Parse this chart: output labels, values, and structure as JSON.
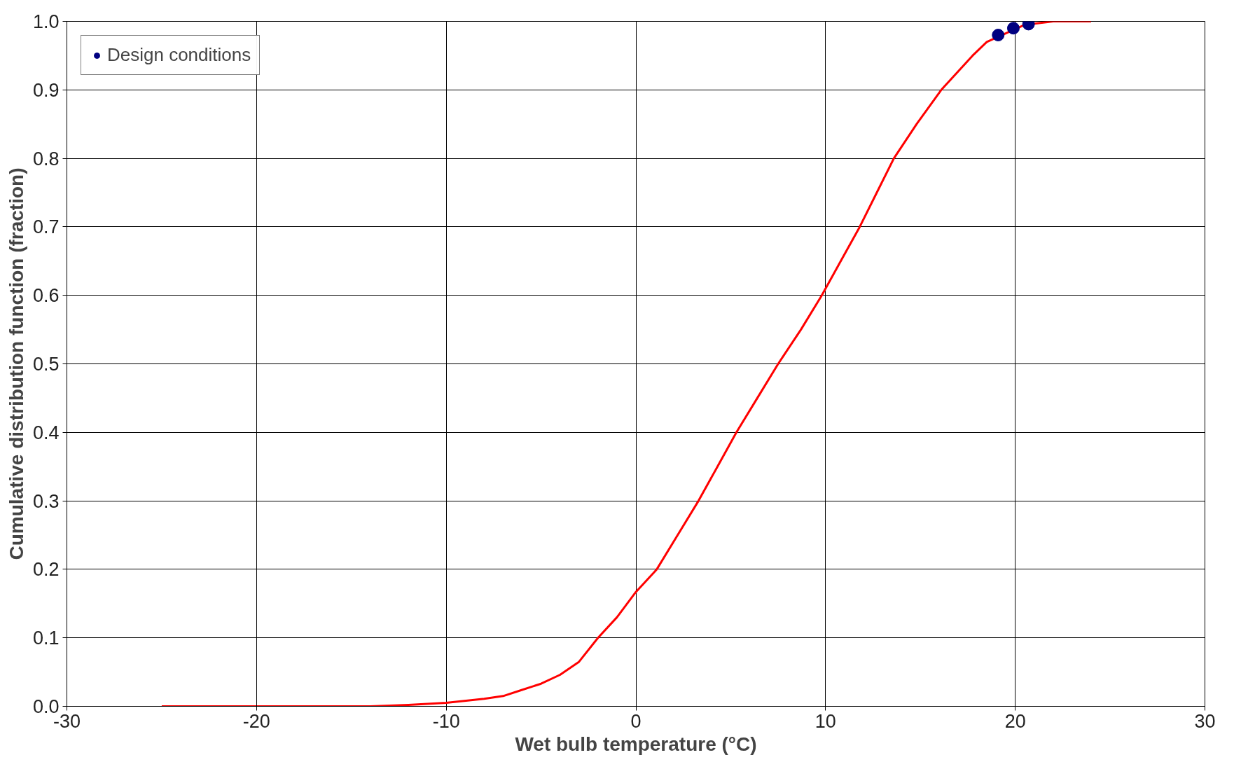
{
  "chart_data": {
    "type": "line",
    "xlabel": "Wet bulb temperature (°C)",
    "ylabel": "Cumulative distribution function (fraction)",
    "xlim": [
      -30,
      30
    ],
    "xticks": [
      -30,
      -20,
      -10,
      0,
      10,
      20,
      30
    ],
    "ylim": [
      0,
      1
    ],
    "yticks": [
      {
        "value": 0,
        "label": "0.0"
      },
      0.1,
      0.2,
      0.3,
      0.4,
      0.5,
      0.6,
      0.7,
      0.8,
      0.9,
      {
        "value": 1,
        "label": "1.0"
      }
    ],
    "grid": true,
    "legend": "top left",
    "series": [
      {
        "type": "line",
        "color": "#ff0000",
        "marker": "none",
        "line_style": "solid",
        "x": [
          -25,
          -14,
          -12,
          -10,
          -8,
          -7,
          -6,
          -5,
          -4,
          -3,
          -2,
          -1,
          0,
          1.1,
          2.2,
          3.3,
          4.3,
          5.3,
          6.4,
          7.5,
          8.7,
          9.8,
          10.8,
          11.8,
          12.7,
          13.6,
          14.8,
          16.1,
          17.75,
          18.5,
          20.5,
          22,
          24
        ],
        "values": [
          0,
          0,
          0.002,
          0.005,
          0.011,
          0.015,
          0.024,
          0.033,
          0.046,
          0.065,
          0.1,
          0.13,
          0.167,
          0.2,
          0.25,
          0.3,
          0.35,
          0.4,
          0.45,
          0.5,
          0.55,
          0.6,
          0.65,
          0.7,
          0.75,
          0.8,
          0.85,
          0.9,
          0.95,
          0.97,
          0.995,
          1.0,
          1.0
        ]
      },
      {
        "type": "scatter",
        "name": "Design conditions",
        "color": "#000080",
        "marker": "circle",
        "x": [
          19.1,
          19.9,
          20.7
        ],
        "values": [
          0.98,
          0.99,
          0.996
        ]
      }
    ]
  }
}
